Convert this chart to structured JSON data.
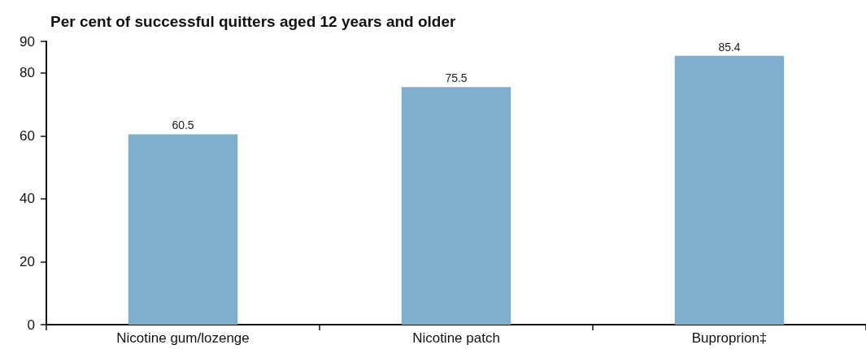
{
  "chart_data": {
    "type": "bar",
    "title": "Per cent of successful quitters aged 12 years and older",
    "categories": [
      "Nicotine gum/lozenge",
      "Nicotine patch",
      "Buproprion‡"
    ],
    "values": [
      60.5,
      75.5,
      85.4
    ],
    "color": "#7fafcc",
    "ylim": [
      0,
      90
    ],
    "yticks": [
      0,
      20,
      40,
      60,
      80,
      90
    ],
    "grid": false,
    "data_labels": true
  }
}
